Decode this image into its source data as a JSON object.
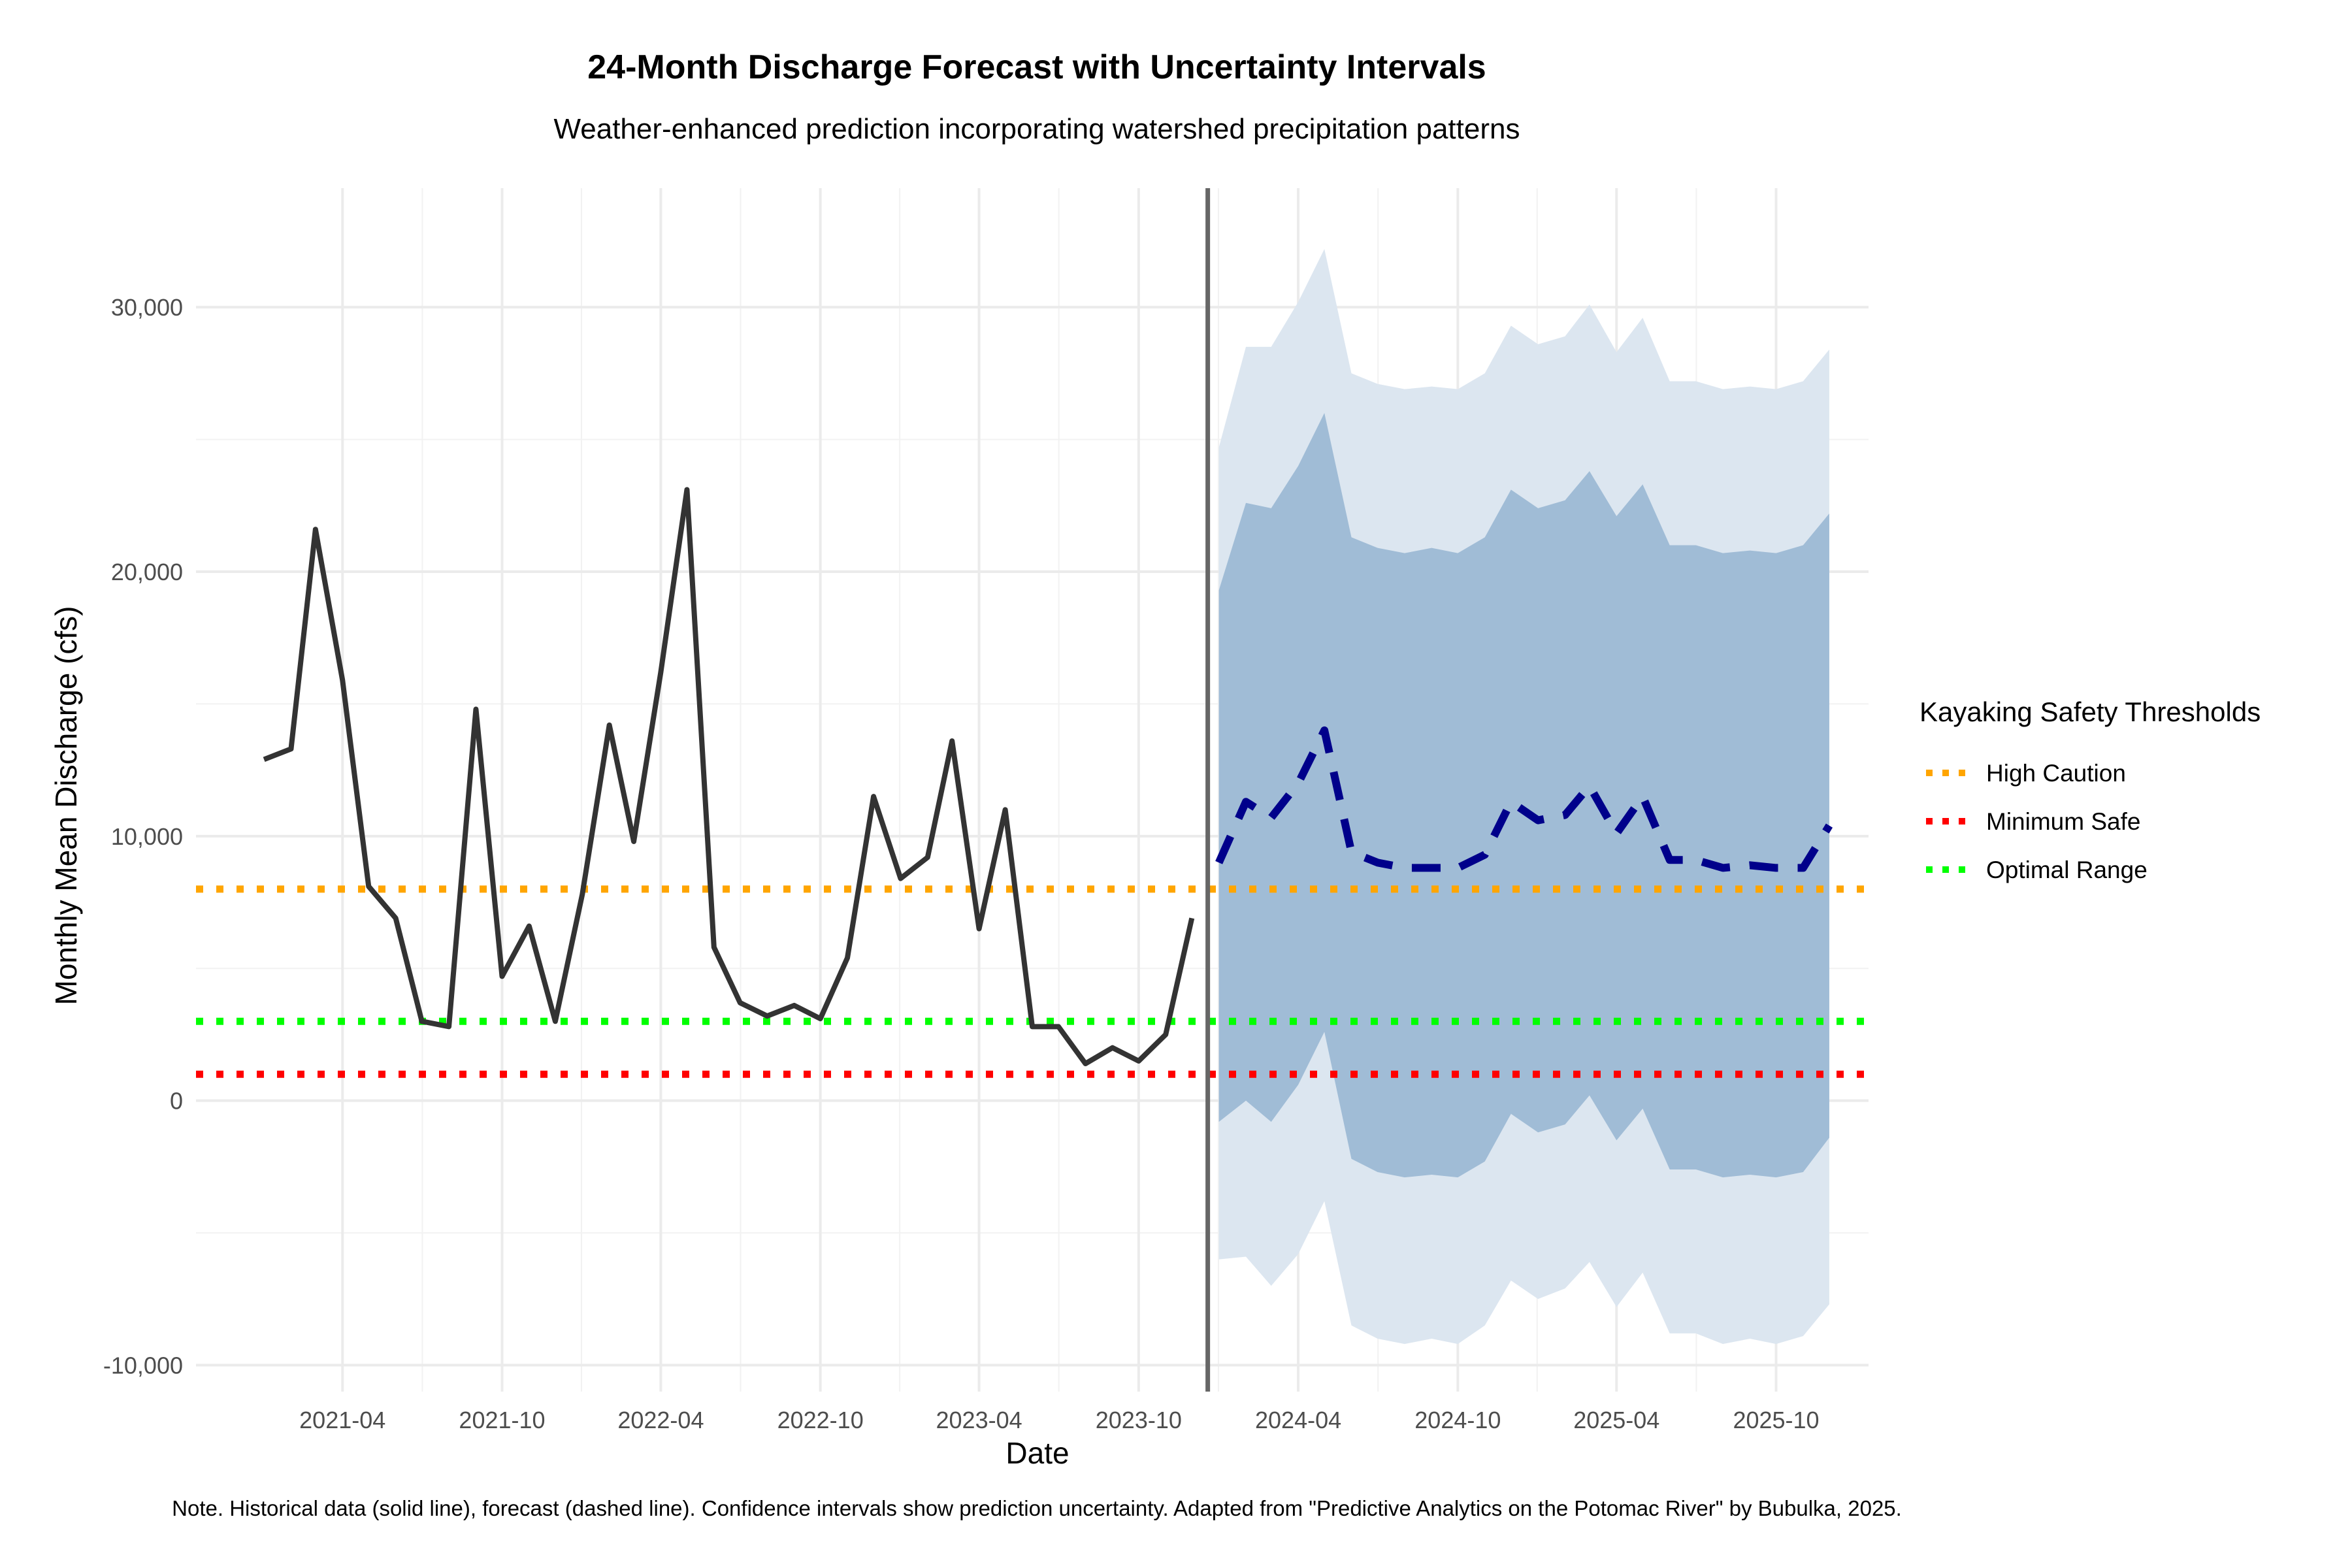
{
  "chart_data": {
    "type": "line",
    "title": "24-Month Discharge Forecast with Uncertainty Intervals",
    "subtitle": "Weather-enhanced prediction incorporating watershed precipitation patterns",
    "xlabel": "Date",
    "ylabel": "Monthly Mean Discharge (cfs)",
    "caption": "Note. Historical data (solid line), forecast (dashed line). Confidence intervals show prediction uncertainty. Adapted from \"Predictive Analytics on the Potomac River\" by Bubulka, 2025.",
    "xlim": [
      "2020-10-15",
      "2026-01-15"
    ],
    "ylim": [
      -11000,
      34500
    ],
    "x_ticks": [
      {
        "date": "2021-04-01",
        "label": "2021-04"
      },
      {
        "date": "2021-10-01",
        "label": "2021-10"
      },
      {
        "date": "2022-04-01",
        "label": "2022-04"
      },
      {
        "date": "2022-10-01",
        "label": "2022-10"
      },
      {
        "date": "2023-04-01",
        "label": "2023-04"
      },
      {
        "date": "2023-10-01",
        "label": "2023-10"
      },
      {
        "date": "2024-04-01",
        "label": "2024-04"
      },
      {
        "date": "2024-10-01",
        "label": "2024-10"
      },
      {
        "date": "2025-04-01",
        "label": "2025-04"
      },
      {
        "date": "2025-10-01",
        "label": "2025-10"
      }
    ],
    "y_ticks": [
      {
        "value": -10000,
        "label": "-10,000"
      },
      {
        "value": 0,
        "label": "0"
      },
      {
        "value": 10000,
        "label": "10,000"
      },
      {
        "value": 20000,
        "label": "20,000"
      },
      {
        "value": 30000,
        "label": "30,000"
      }
    ],
    "grid": true,
    "forecast_start": "2024-01-01",
    "historical": {
      "color": "#333333",
      "x": [
        "2021-01-01",
        "2021-02-01",
        "2021-03-01",
        "2021-04-01",
        "2021-05-01",
        "2021-06-01",
        "2021-07-01",
        "2021-08-01",
        "2021-09-01",
        "2021-10-01",
        "2021-11-01",
        "2021-12-01",
        "2022-01-01",
        "2022-02-01",
        "2022-03-01",
        "2022-04-01",
        "2022-05-01",
        "2022-06-01",
        "2022-07-01",
        "2022-08-01",
        "2022-09-01",
        "2022-10-01",
        "2022-11-01",
        "2022-12-01",
        "2023-01-01",
        "2023-02-01",
        "2023-03-01",
        "2023-04-01",
        "2023-05-01",
        "2023-06-01",
        "2023-07-01",
        "2023-08-01",
        "2023-09-01",
        "2023-10-01",
        "2023-11-01",
        "2023-12-01"
      ],
      "y": [
        12900,
        13300,
        21600,
        15900,
        8100,
        6900,
        3000,
        2800,
        14800,
        4700,
        6600,
        3000,
        7800,
        14200,
        9800,
        16200,
        23100,
        5800,
        3700,
        3200,
        3600,
        3100,
        5400,
        11500,
        8400,
        9200,
        13600,
        6500,
        11000,
        2800,
        2800,
        1400,
        2000,
        1500,
        2500,
        6900
      ]
    },
    "forecast": {
      "color": "#00008b",
      "x": [
        "2024-01-01",
        "2024-02-01",
        "2024-03-01",
        "2024-04-01",
        "2024-05-01",
        "2024-06-01",
        "2024-07-01",
        "2024-08-01",
        "2024-09-01",
        "2024-10-01",
        "2024-11-01",
        "2024-12-01",
        "2025-01-01",
        "2025-02-01",
        "2025-03-01",
        "2025-04-01",
        "2025-05-01",
        "2025-06-01",
        "2025-07-01",
        "2025-08-01",
        "2025-09-01",
        "2025-10-01",
        "2025-11-01",
        "2025-12-01"
      ],
      "y": [
        9000,
        11300,
        10700,
        12000,
        14000,
        9400,
        9000,
        8800,
        8800,
        8800,
        9300,
        11300,
        10600,
        10800,
        11900,
        10100,
        11500,
        9100,
        9100,
        8800,
        8900,
        8800,
        8800,
        10400
      ]
    },
    "intervals": [
      {
        "name": "outer",
        "color": "#dce6f0",
        "upper": [
          24700,
          28500,
          28500,
          30200,
          32200,
          27500,
          27100,
          26900,
          27000,
          26900,
          27500,
          29300,
          28600,
          28900,
          30100,
          28300,
          29600,
          27200,
          27200,
          26900,
          27000,
          26900,
          27200,
          28400
        ],
        "lower": [
          -6000,
          -5900,
          -7000,
          -5800,
          -3800,
          -8500,
          -9000,
          -9200,
          -9000,
          -9200,
          -8500,
          -6800,
          -7500,
          -7100,
          -6100,
          -7800,
          -6500,
          -8800,
          -8800,
          -9200,
          -9000,
          -9200,
          -8900,
          -7700
        ]
      },
      {
        "name": "inner",
        "color": "#a0bcd6",
        "upper": [
          19300,
          22600,
          22400,
          24000,
          26000,
          21300,
          20900,
          20700,
          20900,
          20700,
          21300,
          23100,
          22400,
          22700,
          23800,
          22100,
          23300,
          21000,
          21000,
          20700,
          20800,
          20700,
          21000,
          22200
        ],
        "lower": [
          -800,
          0,
          -800,
          600,
          2600,
          -2200,
          -2700,
          -2900,
          -2800,
          -2900,
          -2300,
          -500,
          -1200,
          -900,
          200,
          -1500,
          -300,
          -2600,
          -2600,
          -2900,
          -2800,
          -2900,
          -2700,
          -1400
        ]
      }
    ],
    "thresholds": [
      {
        "name": "High Caution",
        "value": 8000,
        "color": "#ffa500"
      },
      {
        "name": "Minimum Safe",
        "value": 1000,
        "color": "#ff0000"
      },
      {
        "name": "Optimal Range",
        "value": 3000,
        "color": "#00ff00"
      }
    ],
    "legend": {
      "title": "Kayaking Safety Thresholds",
      "position": "right",
      "items": [
        "High Caution",
        "Minimum Safe",
        "Optimal Range"
      ]
    }
  }
}
